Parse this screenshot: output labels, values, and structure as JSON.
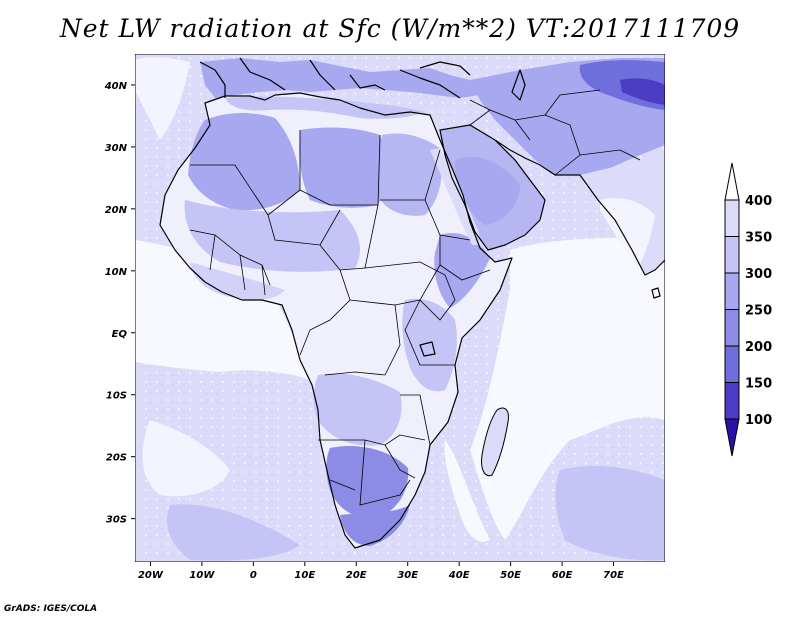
{
  "title": "Net LW radiation at Sfc (W/m**2) VT:2017111709",
  "credit": "GrADS: IGES/COLA",
  "map": {
    "lon_range": [
      -23,
      80
    ],
    "lat_range": [
      -37,
      45
    ],
    "lat_ticks": [
      {
        "value": 40,
        "label": "40N"
      },
      {
        "value": 30,
        "label": "30N"
      },
      {
        "value": 20,
        "label": "20N"
      },
      {
        "value": 10,
        "label": "10N"
      },
      {
        "value": 0,
        "label": "EQ"
      },
      {
        "value": -10,
        "label": "10S"
      },
      {
        "value": -20,
        "label": "20S"
      },
      {
        "value": -30,
        "label": "30S"
      }
    ],
    "lon_ticks": [
      {
        "value": -20,
        "label": "20W"
      },
      {
        "value": -10,
        "label": "10W"
      },
      {
        "value": 0,
        "label": "0"
      },
      {
        "value": 10,
        "label": "10E"
      },
      {
        "value": 20,
        "label": "20E"
      },
      {
        "value": 30,
        "label": "30E"
      },
      {
        "value": 40,
        "label": "40E"
      },
      {
        "value": 50,
        "label": "50E"
      },
      {
        "value": 60,
        "label": "60E"
      },
      {
        "value": 70,
        "label": "70E"
      }
    ]
  },
  "colorbar": {
    "levels": [
      "400",
      "350",
      "300",
      "250",
      "200",
      "150",
      "100"
    ],
    "colors": [
      "#ffffff",
      "#dcdcfa",
      "#c4c4f6",
      "#a8a8f0",
      "#8c8ce6",
      "#6e6edc",
      "#4b3cc3",
      "#2d12a8"
    ]
  }
}
